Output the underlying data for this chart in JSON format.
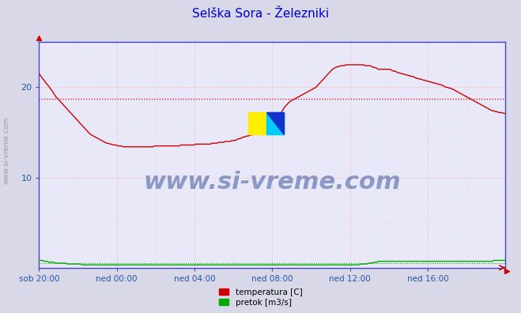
{
  "title": "Selška Sora - Železniki",
  "title_color": "#0000cc",
  "bg_color": "#d8d8e8",
  "plot_bg_color": "#e8e8f8",
  "grid_color_major": "#ffaaaa",
  "grid_color_minor": "#ffcccc",
  "xlim": [
    0,
    288
  ],
  "ylim": [
    0,
    25
  ],
  "yticks": [
    10,
    20
  ],
  "xtick_labels": [
    "sob 20:00",
    "ned 00:00",
    "ned 04:00",
    "ned 08:00",
    "ned 12:00",
    "ned 16:00"
  ],
  "xtick_positions": [
    0,
    48,
    96,
    144,
    192,
    240
  ],
  "avg_line_value": 18.7,
  "avg_line_color": "#cc0000",
  "temp_color": "#cc0000",
  "flow_color": "#00aa00",
  "flow_avg_color": "#00aa00",
  "watermark_text": "www.si-vreme.com",
  "watermark_color": "#1a3a8a",
  "watermark_alpha": 0.45,
  "left_label": "www.si-vreme.com",
  "left_label_color": "#9999aa",
  "legend_temp_label": "temperatura [C]",
  "legend_flow_label": "pretok [m3/s]",
  "legend_temp_color": "#cc0000",
  "legend_flow_color": "#00aa00",
  "spine_color": "#4444cc",
  "tick_color": "#2255aa",
  "arrow_color": "#cc0000",
  "temp_data": [
    21.5,
    21.3,
    21.0,
    20.8,
    20.5,
    20.3,
    20.1,
    19.8,
    19.6,
    19.3,
    19.0,
    18.8,
    18.6,
    18.4,
    18.2,
    18.0,
    17.8,
    17.6,
    17.4,
    17.2,
    17.0,
    16.8,
    16.6,
    16.4,
    16.2,
    16.0,
    15.8,
    15.6,
    15.4,
    15.2,
    15.0,
    14.8,
    14.7,
    14.6,
    14.5,
    14.4,
    14.3,
    14.2,
    14.1,
    14.0,
    13.9,
    13.8,
    13.8,
    13.7,
    13.7,
    13.6,
    13.6,
    13.6,
    13.5,
    13.5,
    13.5,
    13.4,
    13.4,
    13.4,
    13.4,
    13.4,
    13.4,
    13.4,
    13.4,
    13.4,
    13.4,
    13.4,
    13.4,
    13.4,
    13.4,
    13.4,
    13.4,
    13.4,
    13.4,
    13.4,
    13.5,
    13.5,
    13.5,
    13.5,
    13.5,
    13.5,
    13.5,
    13.5,
    13.5,
    13.5,
    13.5,
    13.5,
    13.5,
    13.5,
    13.5,
    13.5,
    13.6,
    13.6,
    13.6,
    13.6,
    13.6,
    13.6,
    13.6,
    13.6,
    13.6,
    13.7,
    13.7,
    13.7,
    13.7,
    13.7,
    13.7,
    13.7,
    13.7,
    13.7,
    13.7,
    13.8,
    13.8,
    13.8,
    13.8,
    13.9,
    13.9,
    13.9,
    13.9,
    14.0,
    14.0,
    14.0,
    14.0,
    14.1,
    14.1,
    14.1,
    14.2,
    14.3,
    14.3,
    14.4,
    14.5,
    14.5,
    14.6,
    14.6,
    14.7,
    14.7,
    14.8,
    14.8,
    14.9,
    14.9,
    15.0,
    15.1,
    15.2,
    15.3,
    15.4,
    15.5,
    15.7,
    15.9,
    16.1,
    16.3,
    16.5,
    16.7,
    17.0,
    17.2,
    17.5,
    17.8,
    18.0,
    18.2,
    18.4,
    18.5,
    18.6,
    18.7,
    18.8,
    18.9,
    19.0,
    19.1,
    19.2,
    19.3,
    19.4,
    19.5,
    19.6,
    19.7,
    19.8,
    19.9,
    20.0,
    20.2,
    20.4,
    20.6,
    20.8,
    21.0,
    21.2,
    21.4,
    21.6,
    21.8,
    22.0,
    22.1,
    22.2,
    22.3,
    22.3,
    22.4,
    22.4,
    22.4,
    22.5,
    22.5,
    22.5,
    22.5,
    22.5,
    22.5,
    22.5,
    22.5,
    22.5,
    22.5,
    22.5,
    22.5,
    22.4,
    22.4,
    22.4,
    22.4,
    22.3,
    22.2,
    22.2,
    22.1,
    22.0,
    22.0,
    22.0,
    22.0,
    22.0,
    22.0,
    22.0,
    22.0,
    21.9,
    21.8,
    21.8,
    21.7,
    21.6,
    21.6,
    21.5,
    21.5,
    21.4,
    21.4,
    21.3,
    21.3,
    21.2,
    21.2,
    21.1,
    21.0,
    21.0,
    20.9,
    20.9,
    20.8,
    20.8,
    20.7,
    20.7,
    20.6,
    20.6,
    20.5,
    20.5,
    20.4,
    20.4,
    20.3,
    20.3,
    20.2,
    20.1,
    20.0,
    20.0,
    19.9,
    19.9,
    19.8,
    19.7,
    19.6,
    19.5,
    19.4,
    19.3,
    19.2,
    19.1,
    19.0,
    18.9,
    18.8,
    18.7,
    18.6,
    18.5,
    18.4,
    18.3,
    18.2,
    18.1,
    18.0,
    17.9,
    17.8,
    17.7,
    17.6,
    17.5,
    17.4,
    17.4,
    17.3,
    17.3,
    17.2,
    17.2,
    17.2,
    17.1,
    17.1
  ],
  "flow_data": [
    0.8,
    0.8,
    0.8,
    0.7,
    0.7,
    0.7,
    0.6,
    0.6,
    0.6,
    0.6,
    0.5,
    0.5,
    0.5,
    0.5,
    0.5,
    0.5,
    0.5,
    0.4,
    0.4,
    0.4,
    0.4,
    0.4,
    0.4,
    0.4,
    0.4,
    0.4,
    0.3,
    0.3,
    0.3,
    0.3,
    0.3,
    0.3,
    0.3,
    0.3,
    0.3,
    0.3,
    0.3,
    0.3,
    0.3,
    0.3,
    0.3,
    0.3,
    0.3,
    0.3,
    0.3,
    0.3,
    0.3,
    0.3,
    0.3,
    0.3,
    0.3,
    0.3,
    0.3,
    0.3,
    0.3,
    0.3,
    0.3,
    0.3,
    0.3,
    0.3,
    0.3,
    0.3,
    0.3,
    0.3,
    0.3,
    0.3,
    0.3,
    0.3,
    0.3,
    0.3,
    0.3,
    0.3,
    0.3,
    0.3,
    0.3,
    0.3,
    0.3,
    0.3,
    0.3,
    0.3,
    0.3,
    0.3,
    0.3,
    0.3,
    0.3,
    0.3,
    0.3,
    0.3,
    0.3,
    0.3,
    0.3,
    0.3,
    0.3,
    0.3,
    0.3,
    0.3,
    0.3,
    0.3,
    0.3,
    0.3,
    0.3,
    0.3,
    0.3,
    0.3,
    0.3,
    0.3,
    0.3,
    0.3,
    0.3,
    0.3,
    0.3,
    0.3,
    0.3,
    0.3,
    0.3,
    0.3,
    0.3,
    0.3,
    0.3,
    0.3,
    0.3,
    0.3,
    0.3,
    0.3,
    0.3,
    0.3,
    0.3,
    0.3,
    0.3,
    0.3,
    0.3,
    0.3,
    0.3,
    0.3,
    0.3,
    0.3,
    0.3,
    0.3,
    0.3,
    0.3,
    0.3,
    0.3,
    0.3,
    0.3,
    0.3,
    0.3,
    0.3,
    0.3,
    0.3,
    0.3,
    0.3,
    0.3,
    0.3,
    0.3,
    0.3,
    0.3,
    0.3,
    0.3,
    0.3,
    0.3,
    0.3,
    0.3,
    0.3,
    0.3,
    0.3,
    0.3,
    0.3,
    0.3,
    0.3,
    0.3,
    0.3,
    0.3,
    0.3,
    0.3,
    0.3,
    0.3,
    0.3,
    0.3,
    0.3,
    0.3,
    0.3,
    0.3,
    0.3,
    0.3,
    0.3,
    0.3,
    0.3,
    0.3,
    0.3,
    0.3,
    0.3,
    0.3,
    0.3,
    0.3,
    0.3,
    0.4,
    0.4,
    0.4,
    0.4,
    0.4,
    0.5,
    0.5,
    0.5,
    0.6,
    0.6,
    0.6,
    0.7,
    0.7,
    0.7,
    0.7,
    0.7,
    0.7,
    0.7,
    0.7,
    0.7,
    0.7,
    0.7,
    0.7,
    0.7,
    0.7,
    0.7,
    0.7,
    0.7,
    0.7,
    0.7,
    0.7,
    0.7,
    0.7,
    0.7,
    0.7,
    0.7,
    0.7,
    0.7,
    0.7,
    0.7,
    0.7,
    0.7,
    0.7,
    0.7,
    0.7,
    0.7,
    0.7,
    0.7,
    0.7,
    0.7,
    0.7,
    0.7,
    0.7,
    0.7,
    0.7,
    0.7,
    0.7,
    0.7,
    0.7,
    0.7,
    0.7,
    0.7,
    0.7,
    0.7,
    0.7,
    0.7,
    0.7,
    0.7,
    0.7,
    0.7,
    0.7,
    0.7,
    0.7,
    0.7,
    0.7,
    0.7,
    0.7,
    0.7,
    0.7,
    0.7,
    0.7,
    0.8,
    0.8,
    0.8,
    0.8,
    0.8,
    0.8,
    0.8,
    0.8
  ]
}
